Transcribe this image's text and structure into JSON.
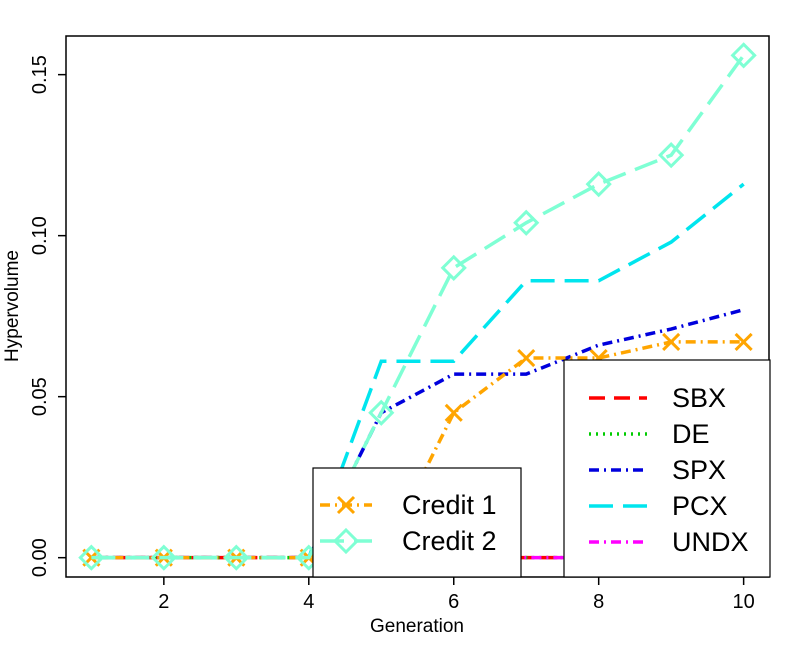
{
  "chart_data": {
    "type": "line",
    "xlabel": "Generation",
    "ylabel": "Hypervolume",
    "xlim": [
      0.65,
      10.35
    ],
    "ylim": [
      -0.006,
      0.162
    ],
    "x_ticks": [
      "2",
      "4",
      "6",
      "8",
      "10"
    ],
    "y_ticks": [
      "0.00",
      "0.05",
      "0.10",
      "0.15"
    ],
    "grid": false,
    "x": [
      1,
      2,
      3,
      4,
      5,
      6,
      7,
      8,
      9,
      10
    ],
    "series": [
      {
        "name": "SBX",
        "color": "#ff0000",
        "dash": "long",
        "values": [
          0,
          0,
          0,
          0,
          0,
          0,
          0,
          0,
          0,
          0
        ]
      },
      {
        "name": "DE",
        "color": "#00cc00",
        "dash": "dotted",
        "values": [
          0,
          0,
          0,
          0,
          0,
          0,
          0,
          0,
          0,
          0
        ]
      },
      {
        "name": "SPX",
        "color": "#0000dd",
        "dash": "dashdot",
        "values": [
          0,
          0,
          0,
          0,
          0.045,
          0.057,
          0.057,
          0.066,
          0.071,
          0.077
        ]
      },
      {
        "name": "PCX",
        "color": "#00e5ee",
        "dash": "longdash",
        "values": [
          0,
          0,
          0,
          0,
          0.061,
          0.061,
          0.086,
          0.086,
          0.098,
          0.116
        ]
      },
      {
        "name": "UNDX",
        "color": "#ff00ff",
        "dash": "dashdot",
        "values": [
          0,
          0,
          0,
          0,
          0,
          0,
          0,
          0,
          0,
          0
        ]
      },
      {
        "name": "Credit 1",
        "color": "#ffa500",
        "dash": "dashdot",
        "marker": "x",
        "values": [
          0,
          0,
          0,
          0,
          0,
          0.045,
          0.062,
          0.062,
          0.067,
          0.067
        ]
      },
      {
        "name": "Credit 2",
        "color": "#7fffd4",
        "dash": "longdash",
        "marker": "diamond",
        "values": [
          0,
          0,
          0,
          0,
          0.045,
          0.09,
          0.104,
          0.116,
          0.125,
          0.156
        ]
      }
    ],
    "legends": [
      {
        "placement": "bottom-right",
        "entries": [
          "SBX",
          "DE",
          "SPX",
          "PCX",
          "UNDX"
        ]
      },
      {
        "placement": "bottom-center",
        "entries": [
          "Credit 1",
          "Credit 2"
        ]
      }
    ]
  }
}
